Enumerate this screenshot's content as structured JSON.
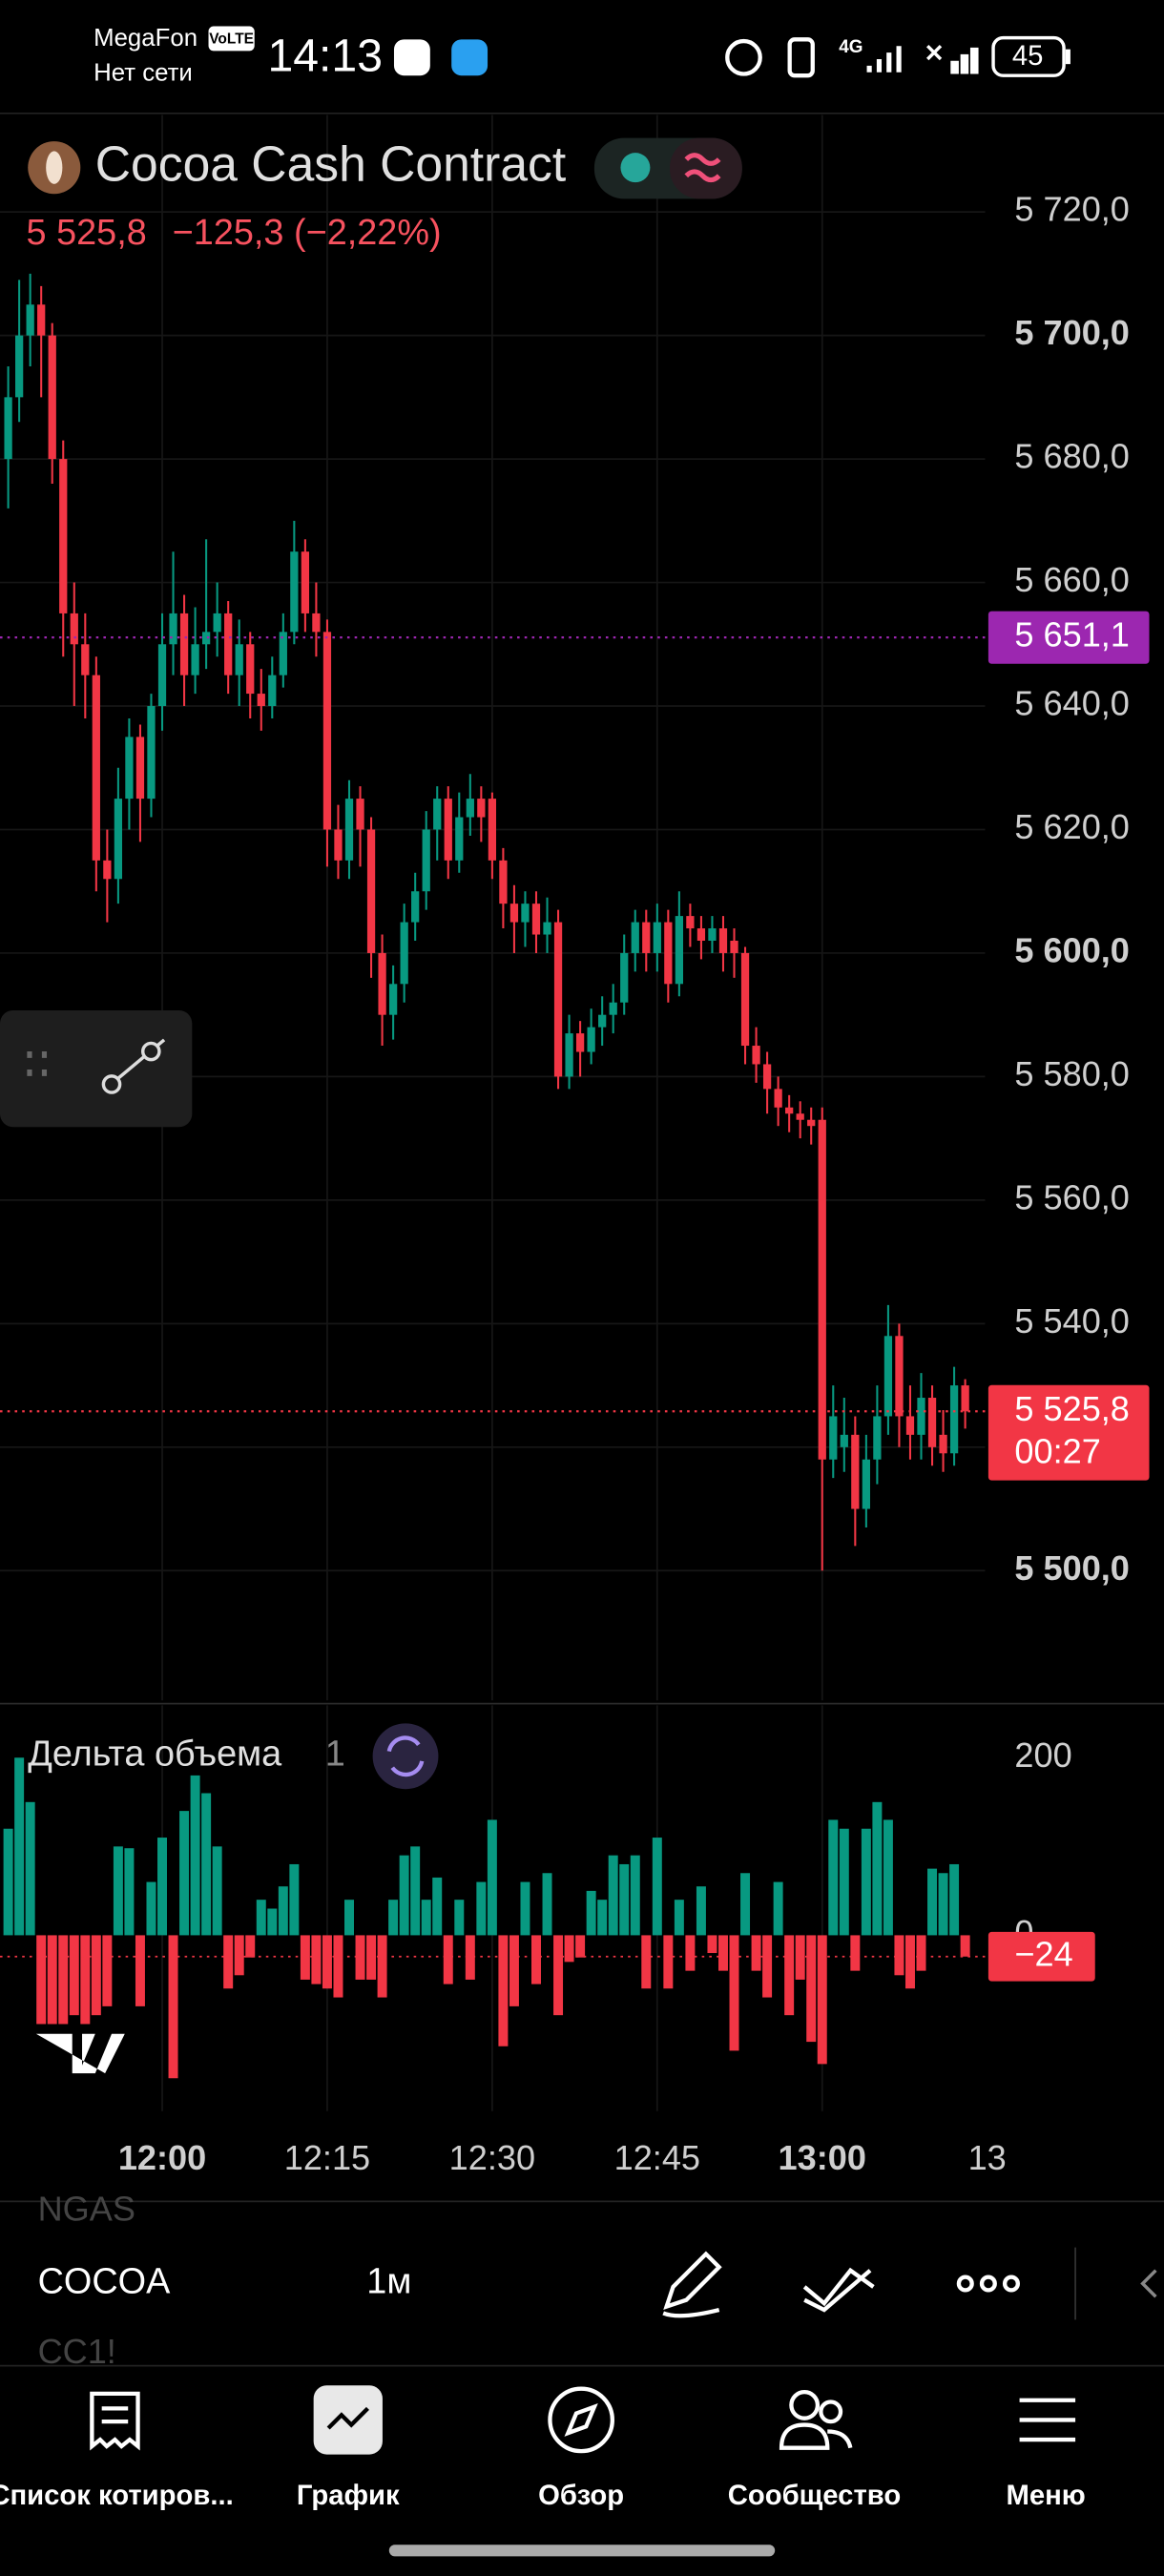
{
  "status_bar": {
    "carrier": "MegaFon",
    "volte": "VoLTE",
    "network": "Нет сети",
    "time": "14:13",
    "signal": "4G",
    "battery": "45"
  },
  "chart_data": {
    "type": "candlestick",
    "title": "Cocoa Cash Contract",
    "last_price": "5 525,8",
    "change": "−125,3 (−2,22%)",
    "up_color": "#089981",
    "down_color": "#f23645",
    "grid": true,
    "open": [
      5680,
      5690,
      5700,
      5705,
      5700,
      5680,
      5655,
      5650,
      5645,
      5615,
      5612,
      5625,
      5635,
      5625,
      5640,
      5650,
      5655,
      5645,
      5650,
      5652,
      5655,
      5645,
      5650,
      5642,
      5640,
      5645,
      5652,
      5665,
      5655,
      5652,
      5620,
      5615,
      5625,
      5620,
      5600,
      5590,
      5595,
      5605,
      5610,
      5620,
      5625,
      5615,
      5622,
      5625,
      5625,
      5615,
      5608,
      5605,
      5608,
      5603,
      5605,
      5580,
      5587,
      5584,
      5588,
      5590,
      5592,
      5600,
      5605,
      5600,
      5605,
      5595,
      5606,
      5604,
      5602,
      5604,
      5602,
      5600,
      5585,
      5582,
      5578,
      5575,
      5574,
      5573,
      5573,
      5518,
      5520,
      5522,
      5510,
      5518,
      5525,
      5538,
      5525,
      5522,
      5528,
      5522,
      5519,
      5530
    ],
    "high": [
      5695,
      5709,
      5710,
      5708,
      5702,
      5683,
      5660,
      5655,
      5648,
      5620,
      5630,
      5638,
      5637,
      5642,
      5655,
      5665,
      5658,
      5656,
      5667,
      5660,
      5657,
      5654,
      5652,
      5646,
      5648,
      5655,
      5670,
      5667,
      5660,
      5654,
      5624,
      5628,
      5627,
      5622,
      5603,
      5598,
      5608,
      5613,
      5623,
      5627,
      5627,
      5626,
      5629,
      5627,
      5626,
      5617,
      5611,
      5610,
      5610,
      5609,
      5607,
      5590,
      5589,
      5591,
      5593,
      5595,
      5603,
      5607,
      5607,
      5608,
      5607,
      5610,
      5608,
      5606,
      5606,
      5606,
      5604,
      5601,
      5588,
      5584,
      5580,
      5577,
      5576,
      5575,
      5575,
      5530,
      5528,
      5525,
      5522,
      5530,
      5543,
      5540,
      5530,
      5532,
      5530,
      5526,
      5533,
      5531
    ],
    "low": [
      5672,
      5686,
      5695,
      5690,
      5676,
      5648,
      5640,
      5638,
      5610,
      5605,
      5608,
      5620,
      5618,
      5622,
      5636,
      5645,
      5640,
      5642,
      5646,
      5648,
      5642,
      5640,
      5638,
      5636,
      5638,
      5643,
      5650,
      5652,
      5648,
      5614,
      5612,
      5612,
      5614,
      5596,
      5585,
      5586,
      5592,
      5602,
      5607,
      5615,
      5612,
      5613,
      5619,
      5618,
      5612,
      5604,
      5600,
      5601,
      5600,
      5600,
      5578,
      5578,
      5580,
      5582,
      5585,
      5587,
      5590,
      5597,
      5597,
      5597,
      5592,
      5593,
      5601,
      5599,
      5600,
      5597,
      5596,
      5582,
      5579,
      5574,
      5572,
      5571,
      5570,
      5569,
      5500,
      5515,
      5516,
      5504,
      5507,
      5514,
      5522,
      5520,
      5518,
      5518,
      5517,
      5516,
      5517,
      5523
    ],
    "close": [
      5690,
      5700,
      5705,
      5700,
      5680,
      5655,
      5650,
      5645,
      5615,
      5612,
      5625,
      5635,
      5625,
      5640,
      5650,
      5655,
      5645,
      5650,
      5652,
      5655,
      5645,
      5650,
      5642,
      5640,
      5645,
      5652,
      5665,
      5655,
      5652,
      5620,
      5615,
      5625,
      5620,
      5600,
      5590,
      5595,
      5605,
      5610,
      5620,
      5625,
      5615,
      5622,
      5625,
      5622,
      5615,
      5608,
      5605,
      5608,
      5603,
      5605,
      5580,
      5587,
      5584,
      5588,
      5590,
      5592,
      5600,
      5605,
      5600,
      5605,
      5595,
      5606,
      5604,
      5602,
      5604,
      5600,
      5600,
      5585,
      5582,
      5578,
      5575,
      5574,
      5573,
      5572,
      5518,
      5525,
      5522,
      5510,
      5518,
      5525,
      5538,
      5525,
      5522,
      5528,
      5520,
      5519,
      5530,
      5525.8
    ],
    "xticks": [
      {
        "value": 14,
        "label": "12:00"
      },
      {
        "value": 29,
        "label": "12:15"
      },
      {
        "value": 44,
        "label": "12:30"
      },
      {
        "value": 59,
        "label": "12:45"
      },
      {
        "value": 74,
        "label": "13:00"
      },
      {
        "value": 89,
        "label": "13"
      }
    ],
    "ylim": [
      5479,
      5735.7
    ],
    "yticks": [
      {
        "value": 5720,
        "label": "5 720,0"
      },
      {
        "value": 5700,
        "label": "5 700,0"
      },
      {
        "value": 5680,
        "label": "5 680,0"
      },
      {
        "value": 5660,
        "label": "5 660,0"
      },
      {
        "value": 5640,
        "label": "5 640,0"
      },
      {
        "value": 5620,
        "label": "5 620,0"
      },
      {
        "value": 5600,
        "label": "5 600,0"
      },
      {
        "value": 5580,
        "label": "5 580,0"
      },
      {
        "value": 5560,
        "label": "5 560,0"
      },
      {
        "value": 5540,
        "label": "5 540,0"
      },
      {
        "value": 5520,
        "label": "5 520,0"
      },
      {
        "value": 5500,
        "label": "5 500,0"
      }
    ],
    "price_line": {
      "value": 5651.1,
      "label": "5 651,1",
      "color": "#9c27b0"
    },
    "last_line": {
      "value": 5525.8,
      "label": "5 525,8",
      "countdown": "00:27",
      "color": "#f23645"
    },
    "indicator": {
      "type": "bar",
      "title": "Дельта объема",
      "parameter": "1",
      "up_color": "#089981",
      "down_color": "#f23645",
      "values": [
        120,
        200,
        150,
        -100,
        -100,
        -100,
        -90,
        -100,
        -90,
        -80,
        100,
        98,
        -80,
        60,
        110,
        -161,
        140,
        180,
        160,
        100,
        -60,
        -45,
        -25,
        40,
        30,
        55,
        80,
        -50,
        -55,
        -60,
        -70,
        40,
        -50,
        -50,
        -70,
        40,
        90,
        100,
        40,
        65,
        -55,
        40,
        -50,
        60,
        130,
        -125,
        -80,
        60,
        -55,
        70,
        -90,
        -30,
        -25,
        50,
        40,
        90,
        80,
        90,
        -60,
        110,
        -60,
        40,
        -40,
        55,
        -20,
        -40,
        -130,
        70,
        -40,
        -70,
        60,
        -90,
        -50,
        -120,
        -145,
        130,
        120,
        -40,
        120,
        150,
        130,
        -45,
        -60,
        -40,
        75,
        70,
        80,
        -24
      ],
      "ylim": [
        -198,
        259
      ],
      "yticks": [
        200,
        0
      ],
      "last": {
        "value": -24,
        "label": "−24"
      }
    }
  },
  "toolbar": {
    "symbols": [
      "NGAS",
      "COCOA",
      "CC1!"
    ],
    "interval": "1м"
  },
  "nav": [
    "Список котиров...",
    "График",
    "Обзор",
    "Сообщество",
    "Меню"
  ]
}
